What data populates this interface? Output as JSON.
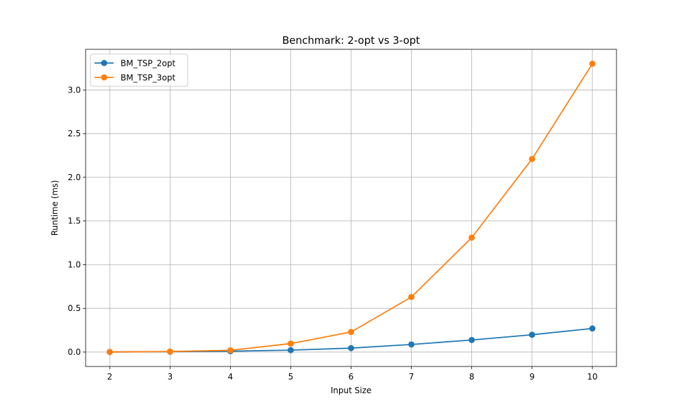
{
  "chart_data": {
    "type": "line",
    "title": "Benchmark: 2-opt vs 3-opt",
    "xlabel": "Input Size",
    "ylabel": "Runtime (ms)",
    "x": [
      2,
      3,
      4,
      5,
      6,
      7,
      8,
      9,
      10
    ],
    "xlim": [
      1.6,
      10.4
    ],
    "ylim": [
      -0.165,
      3.465
    ],
    "xticks": [
      2,
      3,
      4,
      5,
      6,
      7,
      8,
      9,
      10
    ],
    "yticks": [
      0.0,
      0.5,
      1.0,
      1.5,
      2.0,
      2.5,
      3.0
    ],
    "ytick_labels": [
      "0.0",
      "0.5",
      "1.0",
      "1.5",
      "2.0",
      "2.5",
      "3.0"
    ],
    "grid": true,
    "legend_position": "top-left",
    "series": [
      {
        "name": "BM_TSP_2opt",
        "color": "#1f77b4",
        "marker": "circle",
        "values": [
          0.001,
          0.004,
          0.01,
          0.022,
          0.045,
          0.087,
          0.138,
          0.198,
          0.27
        ]
      },
      {
        "name": "BM_TSP_3opt",
        "color": "#ff7f0e",
        "marker": "circle",
        "values": [
          0.001,
          0.006,
          0.02,
          0.097,
          0.23,
          0.63,
          1.31,
          2.21,
          3.3
        ]
      }
    ]
  }
}
